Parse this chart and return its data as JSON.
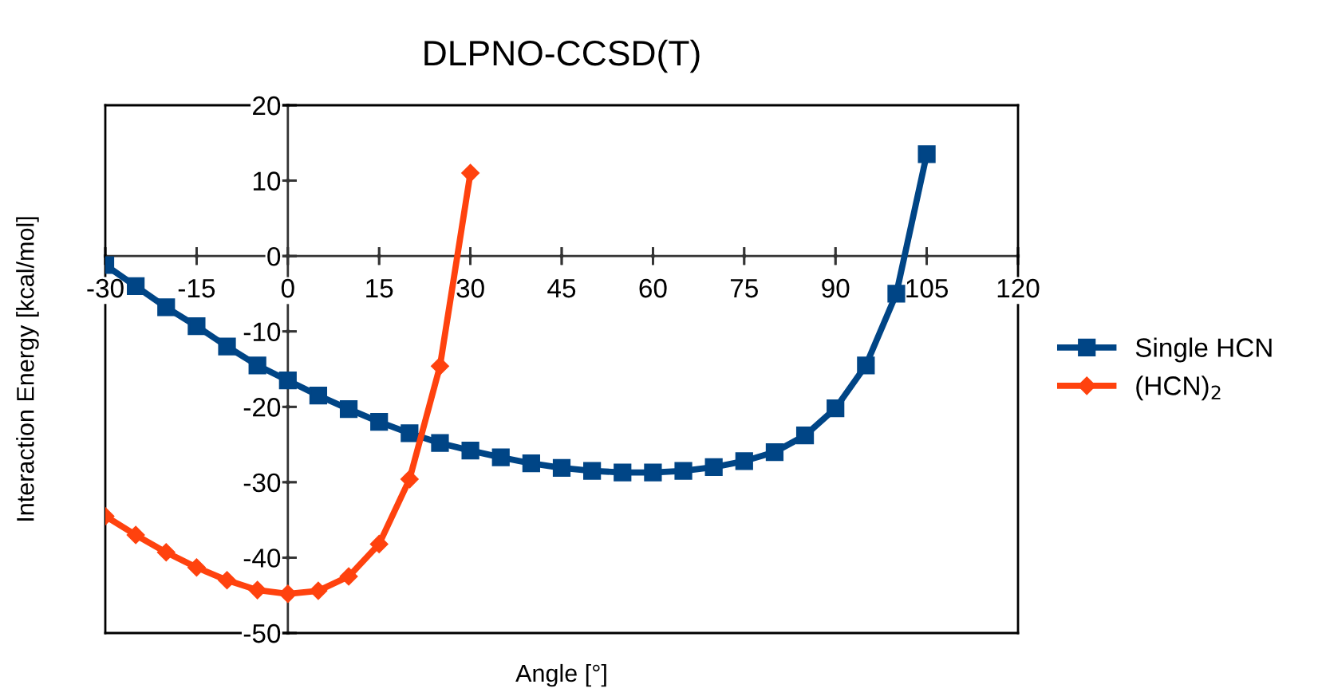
{
  "chart_data": {
    "type": "line",
    "title": "DLPNO-CCSD(T)",
    "xlabel": "Angle [°]",
    "ylabel": "Interaction Energy [kcal/mol]",
    "xlim": [
      -30,
      120
    ],
    "xticks": [
      -30,
      -15,
      0,
      15,
      30,
      45,
      60,
      75,
      90,
      105,
      120
    ],
    "ylim": [
      -50,
      20
    ],
    "yticks": [
      -50,
      -40,
      -30,
      -20,
      -10,
      0,
      10,
      20
    ],
    "grid": false,
    "legend": "right",
    "line_style": "solid",
    "series": [
      {
        "name": "Single HCN",
        "color": "#004586",
        "marker": "square",
        "x": [
          -30,
          -25,
          -20,
          -15,
          -10,
          -5,
          0,
          5,
          10,
          15,
          20,
          25,
          30,
          35,
          40,
          45,
          50,
          55,
          60,
          65,
          70,
          75,
          80,
          85,
          90,
          95,
          100,
          105
        ],
        "values": [
          -1.2,
          -4,
          -6.8,
          -9.3,
          -12,
          -14.5,
          -16.5,
          -18.5,
          -20.3,
          -22,
          -23.5,
          -24.8,
          -25.8,
          -26.7,
          -27.5,
          -28.1,
          -28.5,
          -28.7,
          -28.7,
          -28.5,
          -28,
          -27.2,
          -26,
          -23.8,
          -20.2,
          -14.5,
          -5,
          13.5
        ]
      },
      {
        "name": "(HCN)$_{2}$",
        "color": "#ff420e",
        "marker": "diamond",
        "x": [
          -30,
          -25,
          -20,
          -15,
          -10,
          -5,
          0,
          5,
          10,
          15,
          20,
          25,
          30
        ],
        "values": [
          -34.5,
          -37,
          -39.3,
          -41.3,
          -43,
          -44.3,
          -44.8,
          -44.4,
          -42.5,
          -38.2,
          -29.6,
          -14.6,
          11
        ]
      }
    ]
  }
}
